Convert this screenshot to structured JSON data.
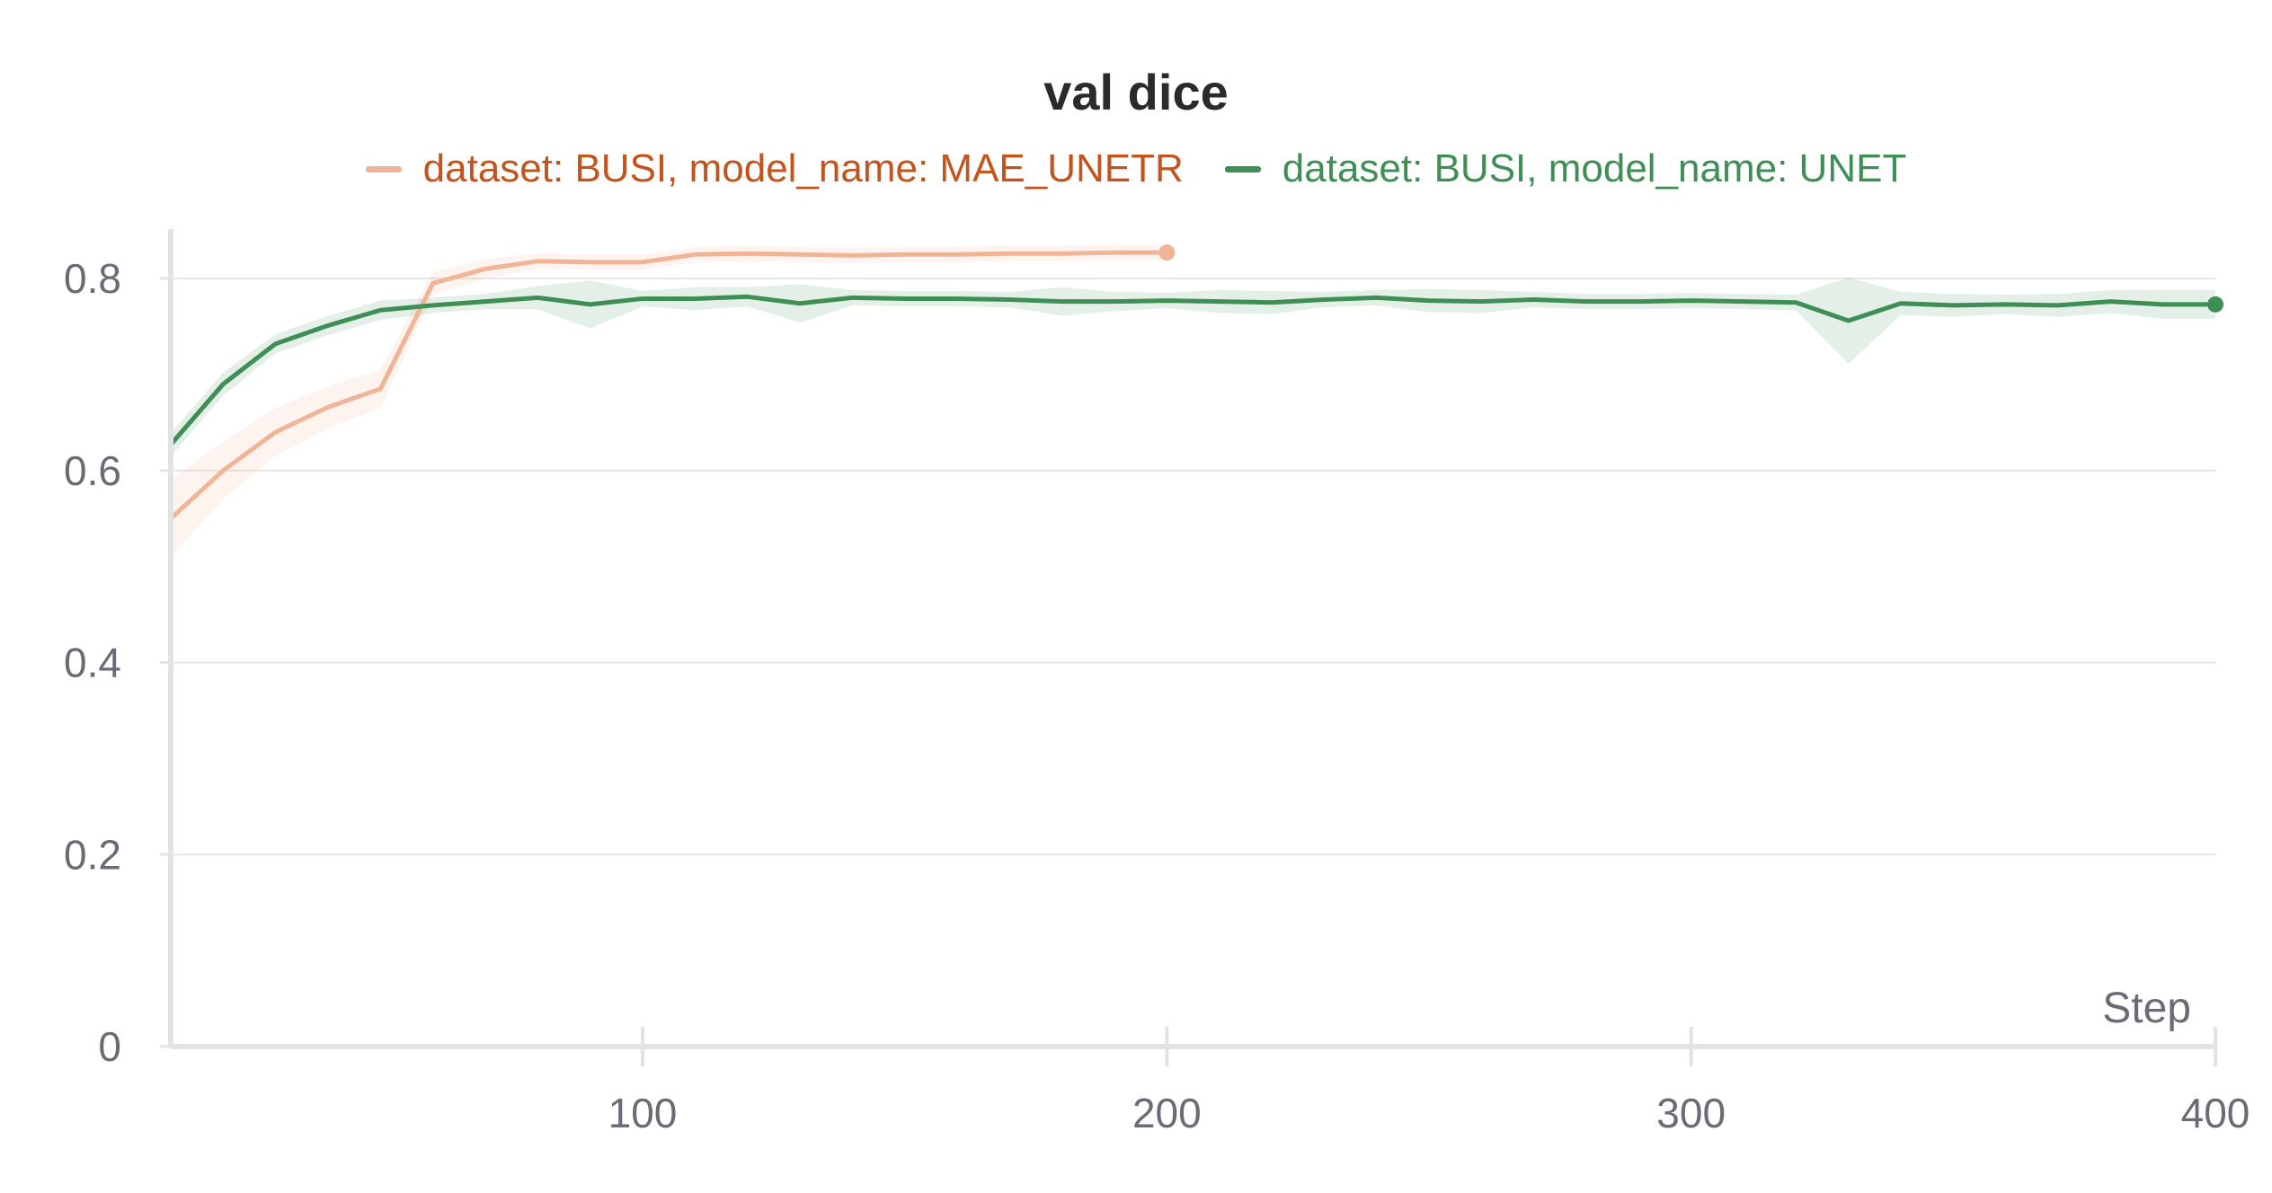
{
  "chart_data": {
    "type": "line",
    "title": "val dice",
    "xlabel": "Step",
    "ylabel": "",
    "xlim": [
      10,
      400
    ],
    "ylim": [
      0,
      0.85
    ],
    "xticks": [
      100,
      200,
      300,
      400
    ],
    "xtick_labels": [
      "100",
      "200",
      "300",
      "400"
    ],
    "yticks": [
      0,
      0.2,
      0.4,
      0.6,
      0.8
    ],
    "ytick_labels": [
      "0",
      "0.2",
      "0.4",
      "0.6",
      "0.8"
    ],
    "grid": true,
    "legend_position": "top-center",
    "series": [
      {
        "name": "dataset: BUSI, model_name: MAE_UNETR",
        "color": "#f0b497",
        "label_color": "#c2541d",
        "x": [
          10,
          20,
          30,
          40,
          50,
          60,
          70,
          80,
          90,
          100,
          110,
          120,
          130,
          140,
          150,
          160,
          170,
          180,
          190,
          200
        ],
        "y": [
          0.55,
          0.6,
          0.64,
          0.666,
          0.685,
          0.795,
          0.81,
          0.818,
          0.817,
          0.817,
          0.825,
          0.826,
          0.825,
          0.824,
          0.825,
          0.825,
          0.826,
          0.826,
          0.827,
          0.827
        ],
        "band": [
          0.04,
          0.03,
          0.025,
          0.022,
          0.02,
          0.012,
          0.01,
          0.008,
          0.008,
          0.008,
          0.008,
          0.008,
          0.008,
          0.008,
          0.008,
          0.008,
          0.008,
          0.008,
          0.008,
          0.008
        ]
      },
      {
        "name": "dataset: BUSI, model_name: UNET",
        "color": "#3e8e55",
        "label_color": "#3e8e55",
        "x": [
          10,
          20,
          30,
          40,
          50,
          60,
          70,
          80,
          90,
          100,
          110,
          120,
          130,
          140,
          150,
          160,
          170,
          180,
          190,
          200,
          210,
          220,
          230,
          240,
          250,
          260,
          270,
          280,
          290,
          300,
          310,
          320,
          330,
          340,
          350,
          360,
          370,
          380,
          390,
          400
        ],
        "y": [
          0.627,
          0.69,
          0.732,
          0.751,
          0.767,
          0.772,
          0.776,
          0.78,
          0.773,
          0.779,
          0.779,
          0.781,
          0.774,
          0.78,
          0.779,
          0.779,
          0.778,
          0.776,
          0.776,
          0.777,
          0.776,
          0.775,
          0.778,
          0.78,
          0.777,
          0.776,
          0.778,
          0.776,
          0.776,
          0.777,
          0.776,
          0.775,
          0.756,
          0.774,
          0.772,
          0.773,
          0.772,
          0.776,
          0.773,
          0.773
        ],
        "band": [
          0.012,
          0.012,
          0.01,
          0.01,
          0.01,
          0.008,
          0.008,
          0.012,
          0.025,
          0.008,
          0.012,
          0.01,
          0.02,
          0.008,
          0.008,
          0.008,
          0.008,
          0.015,
          0.01,
          0.008,
          0.012,
          0.012,
          0.008,
          0.008,
          0.012,
          0.012,
          0.008,
          0.008,
          0.008,
          0.008,
          0.008,
          0.008,
          0.045,
          0.012,
          0.012,
          0.01,
          0.012,
          0.012,
          0.015,
          0.015
        ]
      }
    ]
  }
}
